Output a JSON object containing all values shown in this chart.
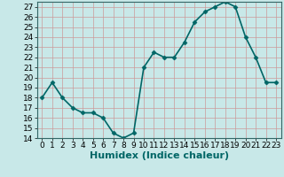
{
  "x": [
    0,
    1,
    2,
    3,
    4,
    5,
    6,
    7,
    8,
    9,
    10,
    11,
    12,
    13,
    14,
    15,
    16,
    17,
    18,
    19,
    20,
    21,
    22,
    23
  ],
  "y": [
    18,
    19.5,
    18,
    17,
    16.5,
    16.5,
    16,
    14.5,
    14,
    14.5,
    21,
    22.5,
    22,
    22,
    23.5,
    25.5,
    26.5,
    27,
    27.5,
    27,
    24,
    22,
    19.5,
    19.5
  ],
  "line_color": "#006666",
  "marker": "D",
  "marker_size": 2.5,
  "bg_color": "#c8e8e8",
  "grid_color_major": "#b0b0b0",
  "grid_color_minor": "#d8d8d8",
  "xlabel": "Humidex (Indice chaleur)",
  "ylim": [
    14,
    27.5
  ],
  "xlim": [
    -0.5,
    23.5
  ],
  "yticks": [
    14,
    15,
    16,
    17,
    18,
    19,
    20,
    21,
    22,
    23,
    24,
    25,
    26,
    27
  ],
  "xticks": [
    0,
    1,
    2,
    3,
    4,
    5,
    6,
    7,
    8,
    9,
    10,
    11,
    12,
    13,
    14,
    15,
    16,
    17,
    18,
    19,
    20,
    21,
    22,
    23
  ],
  "xlabel_fontsize": 8,
  "tick_fontsize": 6.5,
  "line_width": 1.2
}
